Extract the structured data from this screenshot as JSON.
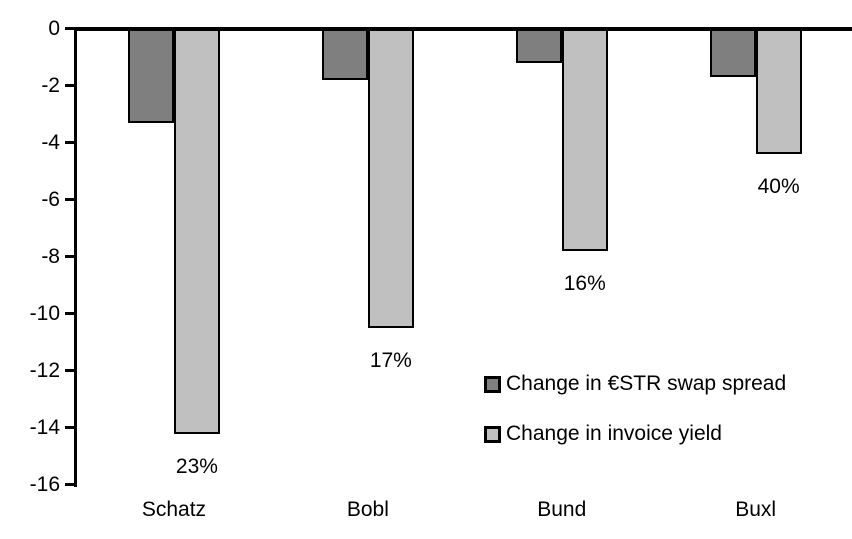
{
  "chart_data": {
    "type": "bar",
    "title": "",
    "xlabel": "",
    "ylabel": "",
    "categories": [
      "Schatz",
      "Bobl",
      "Bund",
      "Buxl"
    ],
    "series": [
      {
        "name": "Change in €STR swap spread",
        "color": "#7f7f7f",
        "values": [
          -3.3,
          -1.8,
          -1.2,
          -1.7
        ]
      },
      {
        "name": "Change in invoice yield",
        "color": "#c0c0c0",
        "values": [
          -14.2,
          -10.5,
          -7.8,
          -4.4
        ],
        "point_labels": [
          "23%",
          "17%",
          "16%",
          "40%"
        ]
      }
    ],
    "yticks": [
      0,
      -2,
      -4,
      -6,
      -8,
      -10,
      -12,
      -14,
      -16
    ],
    "ylim": [
      -16,
      0
    ],
    "grid": false,
    "legend_position": "inside-middle-right",
    "bar_border_color": "#000000",
    "axis_color": "#000000",
    "background": "#ffffff"
  }
}
